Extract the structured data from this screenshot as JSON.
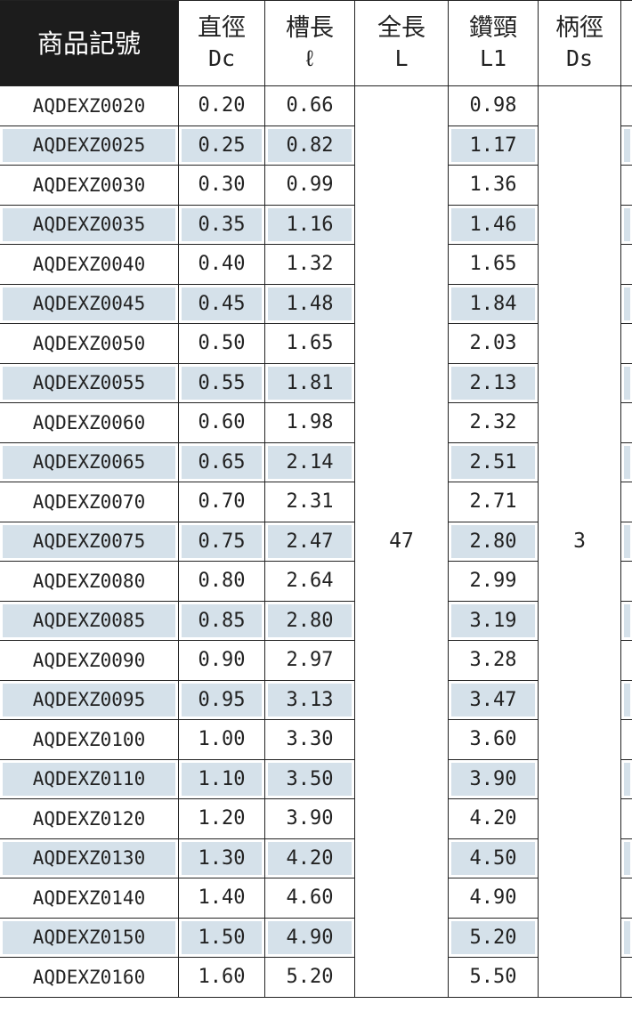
{
  "table": {
    "header": [
      {
        "name": "商品記號"
      },
      {
        "name": "直徑",
        "symbol": "Dc"
      },
      {
        "name": "槽長",
        "symbol": "ℓ"
      },
      {
        "name": "全長",
        "symbol": "L"
      },
      {
        "name": "鑽頸",
        "symbol": "L1"
      },
      {
        "name": "柄徑",
        "symbol": "Ds"
      }
    ],
    "overall_length": "47",
    "shank_diameter": "3",
    "rows": [
      [
        "AQDEXZ0020",
        "0.20",
        "0.66",
        "0.98"
      ],
      [
        "AQDEXZ0025",
        "0.25",
        "0.82",
        "1.17"
      ],
      [
        "AQDEXZ0030",
        "0.30",
        "0.99",
        "1.36"
      ],
      [
        "AQDEXZ0035",
        "0.35",
        "1.16",
        "1.46"
      ],
      [
        "AQDEXZ0040",
        "0.40",
        "1.32",
        "1.65"
      ],
      [
        "AQDEXZ0045",
        "0.45",
        "1.48",
        "1.84"
      ],
      [
        "AQDEXZ0050",
        "0.50",
        "1.65",
        "2.03"
      ],
      [
        "AQDEXZ0055",
        "0.55",
        "1.81",
        "2.13"
      ],
      [
        "AQDEXZ0060",
        "0.60",
        "1.98",
        "2.32"
      ],
      [
        "AQDEXZ0065",
        "0.65",
        "2.14",
        "2.51"
      ],
      [
        "AQDEXZ0070",
        "0.70",
        "2.31",
        "2.71"
      ],
      [
        "AQDEXZ0075",
        "0.75",
        "2.47",
        "2.80"
      ],
      [
        "AQDEXZ0080",
        "0.80",
        "2.64",
        "2.99"
      ],
      [
        "AQDEXZ0085",
        "0.85",
        "2.80",
        "3.19"
      ],
      [
        "AQDEXZ0090",
        "0.90",
        "2.97",
        "3.28"
      ],
      [
        "AQDEXZ0095",
        "0.95",
        "3.13",
        "3.47"
      ],
      [
        "AQDEXZ0100",
        "1.00",
        "3.30",
        "3.60"
      ],
      [
        "AQDEXZ0110",
        "1.10",
        "3.50",
        "3.90"
      ],
      [
        "AQDEXZ0120",
        "1.20",
        "3.90",
        "4.20"
      ],
      [
        "AQDEXZ0130",
        "1.30",
        "4.20",
        "4.50"
      ],
      [
        "AQDEXZ0140",
        "1.40",
        "4.60",
        "4.90"
      ],
      [
        "AQDEXZ0150",
        "1.50",
        "4.90",
        "5.20"
      ],
      [
        "AQDEXZ0160",
        "1.60",
        "5.20",
        "5.50"
      ]
    ]
  }
}
